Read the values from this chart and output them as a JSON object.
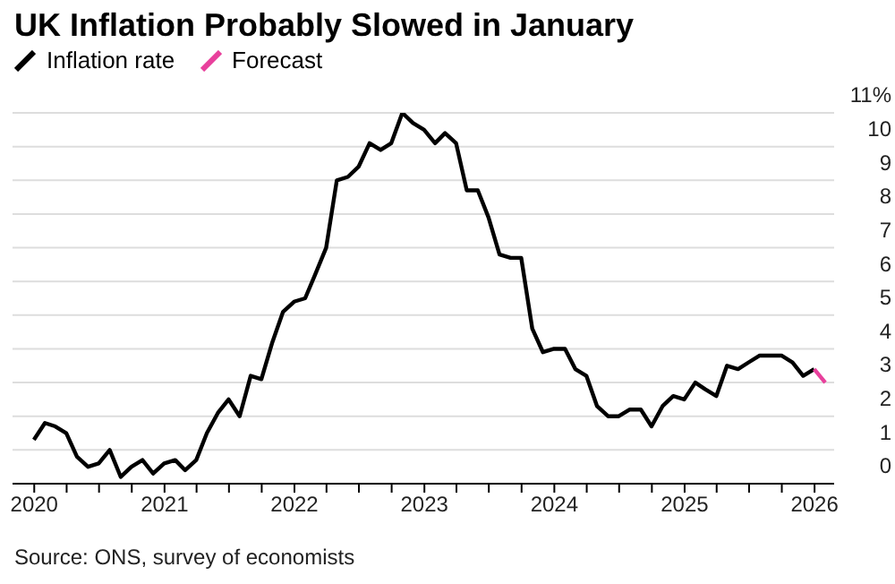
{
  "chart_data": {
    "type": "line",
    "title": "UK Inflation Probably Slowed in January",
    "annotations": [
      "Source: ONS, survey of economists"
    ],
    "legend": "top left",
    "grid": "y",
    "marker": "none",
    "line_style": "solid",
    "series": [
      {
        "name": "Inflation rate",
        "color": "#000000",
        "x": [
          "2019-12-31",
          "2020-01-31",
          "2020-02-29",
          "2020-03-31",
          "2020-04-30",
          "2020-05-31",
          "2020-06-30",
          "2020-07-31",
          "2020-08-31",
          "2020-09-30",
          "2020-10-31",
          "2020-11-30",
          "2020-12-31",
          "2021-01-31",
          "2021-02-28",
          "2021-03-31",
          "2021-04-30",
          "2021-05-31",
          "2021-06-30",
          "2021-07-31",
          "2021-08-31",
          "2021-09-30",
          "2021-10-31",
          "2021-11-30",
          "2021-12-31",
          "2022-01-31",
          "2022-02-28",
          "2022-03-31",
          "2022-04-30",
          "2022-05-31",
          "2022-06-30",
          "2022-07-31",
          "2022-08-31",
          "2022-09-30",
          "2022-10-31",
          "2022-11-30",
          "2022-12-31",
          "2023-01-31",
          "2023-02-28",
          "2023-03-31",
          "2023-04-30",
          "2023-05-31",
          "2023-06-30",
          "2023-07-31",
          "2023-08-31",
          "2023-09-30",
          "2023-10-31",
          "2023-11-30",
          "2023-12-31",
          "2024-01-31",
          "2024-02-29",
          "2024-03-31",
          "2024-04-30",
          "2024-05-31",
          "2024-06-30",
          "2024-07-31",
          "2024-08-31",
          "2024-09-30",
          "2024-10-31",
          "2024-11-30",
          "2024-12-31",
          "2025-01-31",
          "2025-02-28",
          "2025-03-31",
          "2025-04-30",
          "2025-05-31",
          "2025-06-30",
          "2025-07-31",
          "2025-08-31",
          "2025-09-30",
          "2025-10-31",
          "2025-11-30",
          "2025-12-31"
        ],
        "values": [
          1.3,
          1.8,
          1.7,
          1.5,
          0.8,
          0.5,
          0.6,
          1.0,
          0.2,
          0.5,
          0.7,
          0.3,
          0.6,
          0.7,
          0.4,
          0.7,
          1.5,
          2.1,
          2.5,
          2.0,
          3.2,
          3.1,
          4.2,
          5.1,
          5.4,
          5.5,
          6.2,
          7.0,
          9.0,
          9.1,
          9.4,
          10.1,
          9.9,
          10.1,
          11.0,
          10.7,
          10.5,
          10.1,
          10.4,
          10.1,
          8.7,
          8.7,
          7.9,
          6.8,
          6.7,
          6.7,
          4.6,
          3.9,
          4.0,
          4.0,
          3.4,
          3.2,
          2.3,
          2.0,
          2.0,
          2.2,
          2.2,
          1.7,
          2.3,
          2.6,
          2.5,
          3.0,
          2.8,
          2.6,
          3.5,
          3.4,
          3.6,
          3.8,
          3.8,
          3.8,
          3.6,
          3.2,
          3.4
        ]
      },
      {
        "name": "Forecast",
        "color": "#e8409c",
        "x": [
          "2025-12-31",
          "2026-01-31"
        ],
        "values": [
          3.4,
          3.0
        ]
      }
    ],
    "xlim": [
      "2019-11-01",
      "2026-02-25"
    ],
    "xticks": [
      {
        "value": "2020",
        "label": "2020"
      },
      {
        "value": "2020-04",
        "label": null
      },
      {
        "value": "2020-07",
        "label": null
      },
      {
        "value": "2020-10",
        "label": null
      },
      {
        "value": "2021",
        "label": "2021"
      },
      {
        "value": "2021-04",
        "label": null
      },
      {
        "value": "2021-07",
        "label": null
      },
      {
        "value": "2021-10",
        "label": null
      },
      {
        "value": "2022",
        "label": "2022"
      },
      {
        "value": "2022-04",
        "label": null
      },
      {
        "value": "2022-07",
        "label": null
      },
      {
        "value": "2022-10",
        "label": null
      },
      {
        "value": "2023",
        "label": "2023"
      },
      {
        "value": "2023-04",
        "label": null
      },
      {
        "value": "2023-07",
        "label": null
      },
      {
        "value": "2023-10",
        "label": null
      },
      {
        "value": "2024",
        "label": "2024"
      },
      {
        "value": "2024-04",
        "label": null
      },
      {
        "value": "2024-07",
        "label": null
      },
      {
        "value": "2024-10",
        "label": null
      },
      {
        "value": "2025",
        "label": "2025"
      },
      {
        "value": "2025-04",
        "label": null
      },
      {
        "value": "2025-07",
        "label": null
      },
      {
        "value": "2025-10",
        "label": null
      },
      {
        "value": "2026",
        "label": "2026"
      }
    ],
    "ylim": [
      0,
      11
    ],
    "yticks": [
      0,
      1,
      2,
      3,
      4,
      5,
      6,
      7,
      8,
      9,
      10,
      {
        "value": 11,
        "label": "11%"
      }
    ]
  }
}
